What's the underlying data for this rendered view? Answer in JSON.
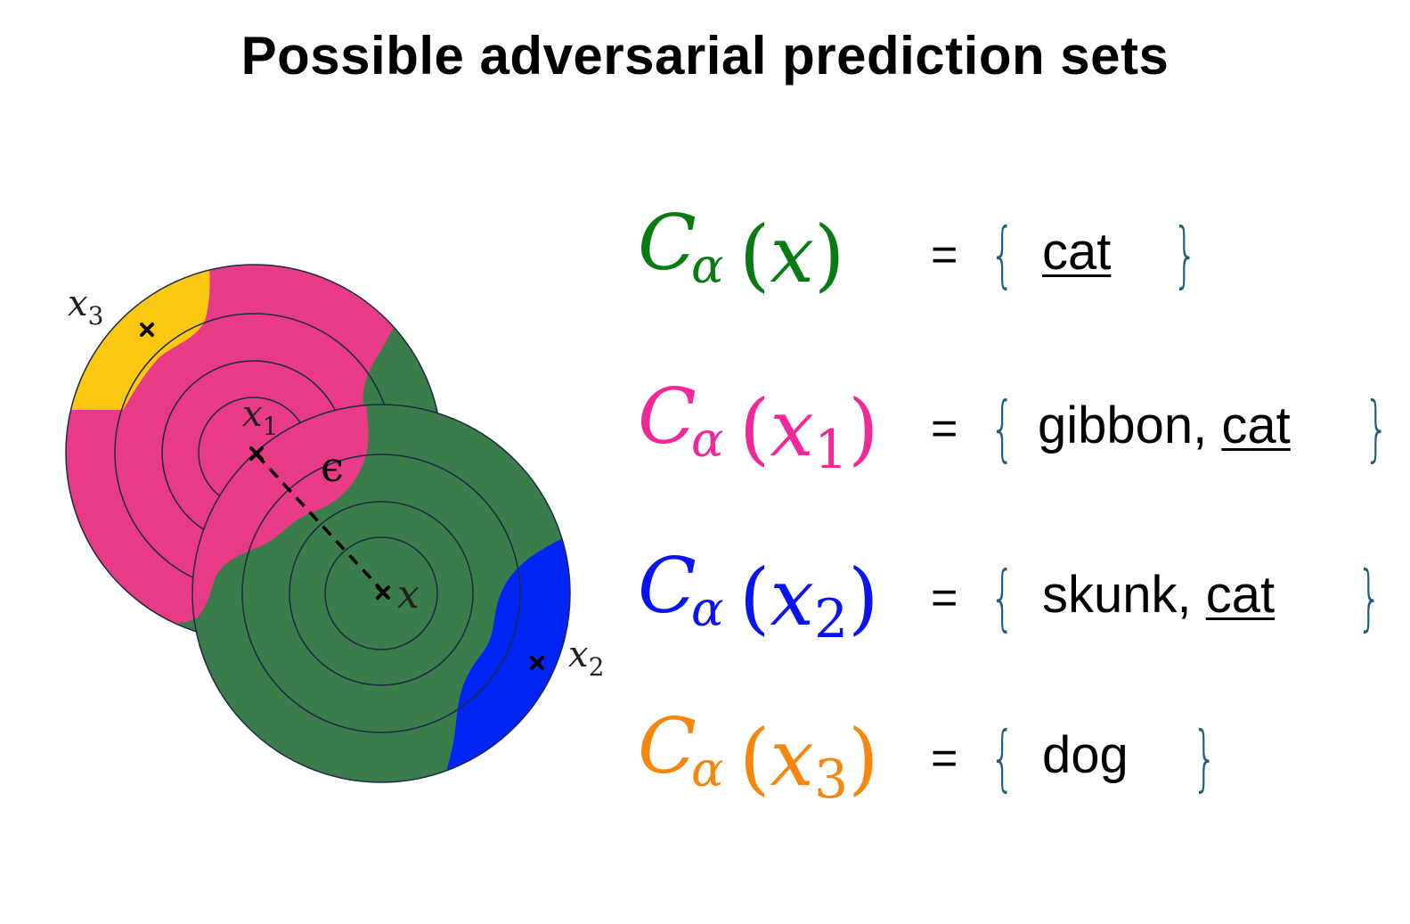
{
  "title": "Possible adversarial prediction sets",
  "diagram": {
    "point_labels": {
      "x": "x",
      "x1": "x",
      "x1_sub": "1",
      "x2": "x",
      "x2_sub": "2",
      "x3": "x",
      "x3_sub": "3",
      "epsilon": "ϵ"
    },
    "colors": {
      "pink_region": "#e83a85",
      "green_region": "#3a7d4a",
      "blue_region": "#0025f5",
      "yellow_region": "#fbc711",
      "ring_stroke": "#1d2a44"
    }
  },
  "equations": [
    {
      "symbol": "C",
      "subscript": "α",
      "open": "(",
      "arg": "x",
      "arg_sub": "",
      "close": ")",
      "color": "#0a7a14",
      "equals": "=",
      "brace_open": "{",
      "brace_close": "}",
      "set_prefix": "",
      "set_underlined": "cat",
      "set_after": ""
    },
    {
      "symbol": "C",
      "subscript": "α",
      "open": "(",
      "arg": "x",
      "arg_sub": "1",
      "close": ")",
      "color": "#f0289a",
      "equals": "=",
      "brace_open": "{",
      "brace_close": "}",
      "set_prefix": "gibbon, ",
      "set_underlined": "cat",
      "set_after": ""
    },
    {
      "symbol": "C",
      "subscript": "α",
      "open": "(",
      "arg": "x",
      "arg_sub": "2",
      "close": ")",
      "color": "#0a14f0",
      "equals": "=",
      "brace_open": "{",
      "brace_close": "}",
      "set_prefix": "skunk, ",
      "set_underlined": "cat",
      "set_after": ""
    },
    {
      "symbol": "C",
      "subscript": "α",
      "open": "(",
      "arg": "x",
      "arg_sub": "3",
      "close": ")",
      "color": "#f5870f",
      "equals": "=",
      "brace_open": "{",
      "brace_close": "}",
      "set_prefix": "dog",
      "set_underlined": "",
      "set_after": ""
    }
  ]
}
